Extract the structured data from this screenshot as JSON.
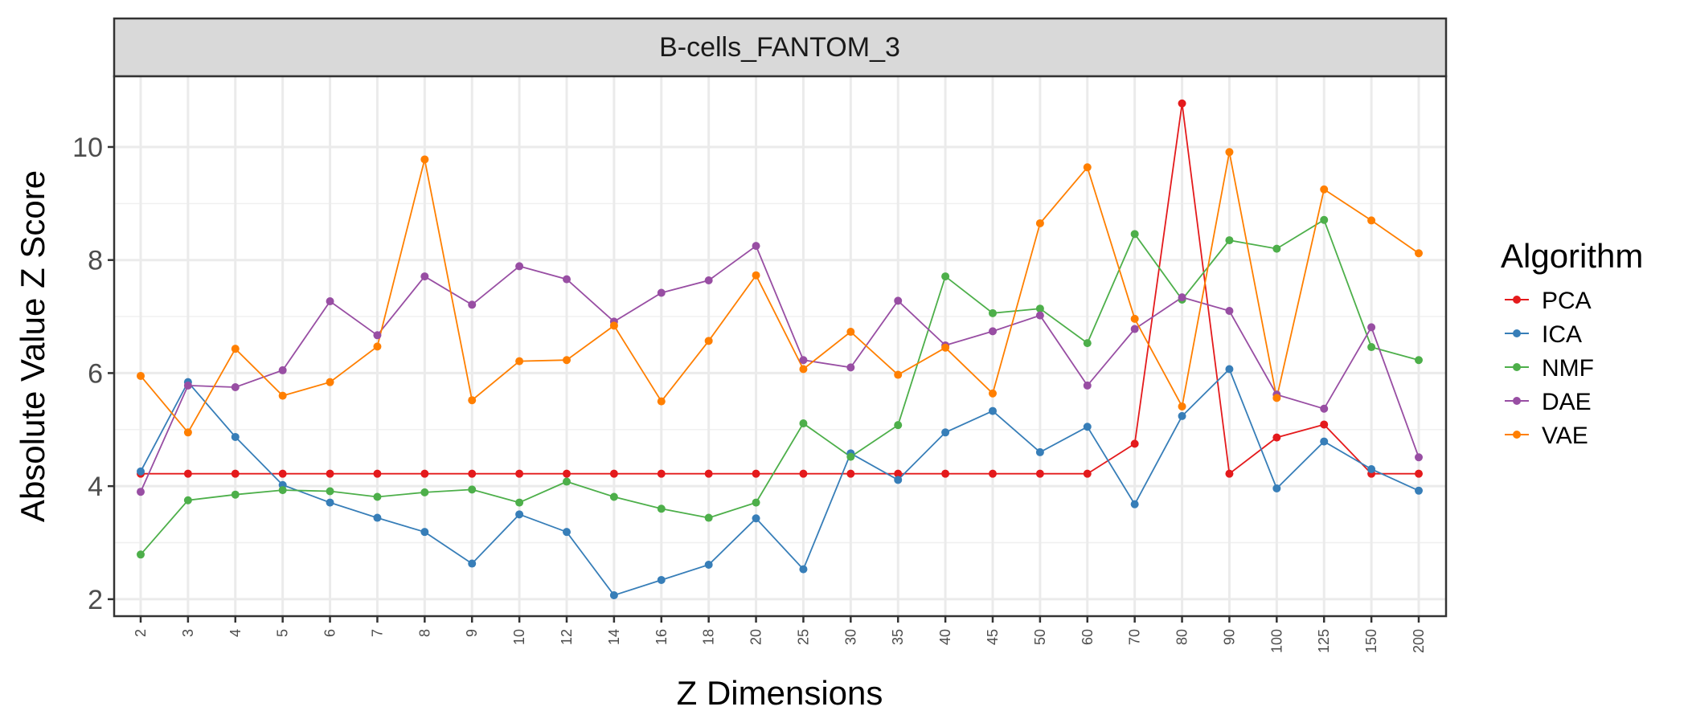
{
  "chart_data": {
    "type": "line",
    "panel_title": "B-cells_FANTOM_3",
    "xlabel": "Z Dimensions",
    "ylabel": "Absolute Value Z Score",
    "ylim": [
      1.7,
      11.25
    ],
    "yticks": [
      2,
      4,
      6,
      8,
      10
    ],
    "grid": true,
    "legend": {
      "title": "Algorithm",
      "position": "right"
    },
    "categories": [
      "2",
      "3",
      "4",
      "5",
      "6",
      "7",
      "8",
      "9",
      "10",
      "12",
      "14",
      "16",
      "18",
      "20",
      "25",
      "30",
      "35",
      "40",
      "45",
      "50",
      "60",
      "70",
      "80",
      "90",
      "100",
      "125",
      "150",
      "200"
    ],
    "series": [
      {
        "name": "PCA",
        "color": "#E41A1C",
        "values": [
          4.22,
          4.22,
          4.22,
          4.22,
          4.22,
          4.22,
          4.22,
          4.22,
          4.22,
          4.22,
          4.22,
          4.22,
          4.22,
          4.22,
          4.22,
          4.22,
          4.22,
          4.22,
          4.22,
          4.22,
          4.22,
          4.75,
          10.77,
          4.22,
          4.86,
          5.09,
          4.22,
          4.22
        ]
      },
      {
        "name": "ICA",
        "color": "#377EB8",
        "values": [
          4.26,
          5.84,
          4.87,
          4.02,
          3.71,
          3.44,
          3.19,
          2.63,
          3.5,
          3.19,
          2.07,
          2.34,
          2.61,
          3.43,
          2.53,
          4.58,
          4.11,
          4.95,
          5.33,
          4.6,
          5.05,
          3.68,
          5.24,
          6.07,
          3.96,
          4.79,
          4.3,
          3.92
        ]
      },
      {
        "name": "NMF",
        "color": "#4DAF4A",
        "values": [
          2.79,
          3.75,
          3.85,
          3.93,
          3.91,
          3.81,
          3.89,
          3.94,
          3.71,
          4.08,
          3.81,
          3.6,
          3.44,
          3.71,
          5.11,
          4.52,
          5.08,
          7.71,
          7.06,
          7.14,
          6.53,
          8.46,
          7.3,
          8.35,
          8.2,
          8.71,
          6.46,
          6.23
        ]
      },
      {
        "name": "DAE",
        "color": "#984EA3",
        "values": [
          3.9,
          5.78,
          5.75,
          6.05,
          7.27,
          6.67,
          7.71,
          7.21,
          7.89,
          7.66,
          6.91,
          7.42,
          7.64,
          8.25,
          6.23,
          6.1,
          7.28,
          6.49,
          6.74,
          7.02,
          5.78,
          6.78,
          7.34,
          7.1,
          5.62,
          5.37,
          6.81,
          4.51
        ]
      },
      {
        "name": "VAE",
        "color": "#FF7F00",
        "values": [
          5.95,
          4.95,
          6.43,
          5.6,
          5.84,
          6.47,
          9.78,
          5.52,
          6.21,
          6.23,
          6.84,
          5.5,
          6.57,
          7.73,
          6.07,
          6.73,
          5.97,
          6.45,
          5.64,
          8.65,
          9.64,
          6.96,
          5.41,
          9.91,
          5.56,
          9.25,
          8.7,
          8.12
        ]
      }
    ]
  }
}
